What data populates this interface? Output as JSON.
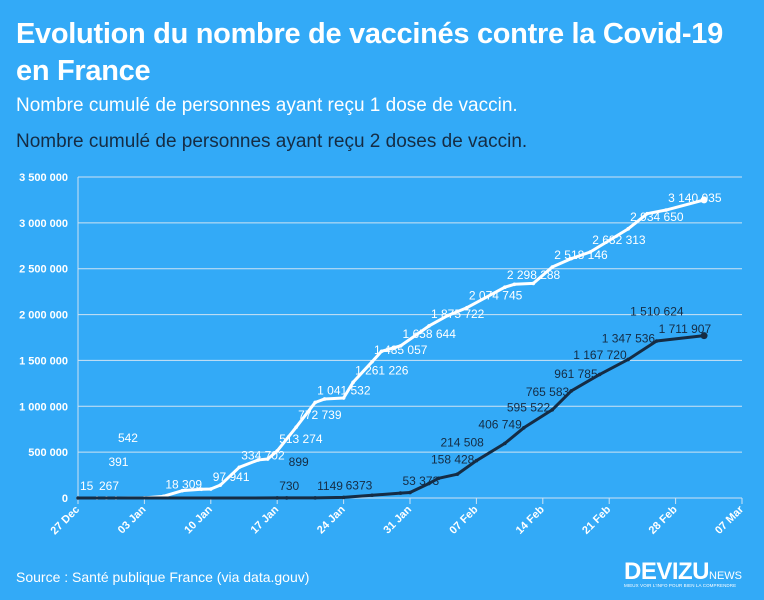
{
  "header": {
    "title": "Evolution du nombre de vaccinés contre la Covid-19 en France",
    "subtitle_dose1": "Nombre cumulé de personnes ayant reçu 1 dose de vaccin.",
    "subtitle_dose2": "Nombre cumulé de personnes ayant reçu 2 doses de vaccin."
  },
  "footer": {
    "source": "Source : Santé publique France (via data.gouv)",
    "logo_text": "DEVIZU",
    "logo_suffix": "NEWS",
    "logo_tagline": "MIEUX VOIR L'INFO POUR BIEN LA COMPRENDRE"
  },
  "colors": {
    "background": "#33aaf7",
    "dose1": "#ffffff",
    "dose2": "#152c44",
    "grid": "#cfe3f3"
  },
  "chart_data": {
    "type": "line",
    "xlim": [
      "2020-12-27",
      "2021-03-07"
    ],
    "ylim": [
      0,
      3500000
    ],
    "grid": true,
    "x_ticks": [
      {
        "date": "2020-12-27",
        "label": "27 Dec"
      },
      {
        "date": "2021-01-03",
        "label": "03 Jan"
      },
      {
        "date": "2021-01-10",
        "label": "10 Jan"
      },
      {
        "date": "2021-01-17",
        "label": "17 Jan"
      },
      {
        "date": "2021-01-24",
        "label": "24 Jan"
      },
      {
        "date": "2021-01-31",
        "label": "31 Jan"
      },
      {
        "date": "2021-02-07",
        "label": "07 Feb"
      },
      {
        "date": "2021-02-14",
        "label": "14 Feb"
      },
      {
        "date": "2021-02-21",
        "label": "21 Feb"
      },
      {
        "date": "2021-02-28",
        "label": "28 Feb"
      },
      {
        "date": "2021-03-07",
        "label": "07 Mar"
      }
    ],
    "y_ticks": [
      {
        "value": 0,
        "label": "0"
      },
      {
        "value": 500000,
        "label": "500 000"
      },
      {
        "value": 1000000,
        "label": "1 000 000"
      },
      {
        "value": 1500000,
        "label": "1 500 000"
      },
      {
        "value": 2000000,
        "label": "2 000 000"
      },
      {
        "value": 2500000,
        "label": "2 500 000"
      },
      {
        "value": 3000000,
        "label": "3 000 000"
      },
      {
        "value": 3500000,
        "label": "3 500 000"
      }
    ],
    "series": [
      {
        "name": "Nombre cumulé de personnes ayant reçu 1 dose de vaccin.",
        "points": [
          {
            "date": "2020-12-27",
            "value": 15,
            "label": "15"
          },
          {
            "date": "2020-12-29",
            "value": 267,
            "label": "267"
          },
          {
            "date": "2020-12-30",
            "value": 391,
            "label": "391"
          },
          {
            "date": "2020-12-31",
            "value": 542,
            "label": "542"
          },
          {
            "date": "2021-01-03",
            "value": 2000
          },
          {
            "date": "2021-01-05",
            "value": 18309,
            "label": "18 309"
          },
          {
            "date": "2021-01-07",
            "value": 80000
          },
          {
            "date": "2021-01-09",
            "value": 95000
          },
          {
            "date": "2021-01-10",
            "value": 97941,
            "label": "97 941"
          },
          {
            "date": "2021-01-11",
            "value": 140000
          },
          {
            "date": "2021-01-13",
            "value": 334702,
            "label": "334 702"
          },
          {
            "date": "2021-01-15",
            "value": 415000
          },
          {
            "date": "2021-01-16",
            "value": 425000
          },
          {
            "date": "2021-01-17",
            "value": 513274,
            "label": "513 274"
          },
          {
            "date": "2021-01-19",
            "value": 772739,
            "label": "772 739"
          },
          {
            "date": "2021-01-21",
            "value": 1041532,
            "label": "1 041 532"
          },
          {
            "date": "2021-01-22",
            "value": 1080000
          },
          {
            "date": "2021-01-24",
            "value": 1090000
          },
          {
            "date": "2021-01-25",
            "value": 1261226,
            "label": "1 261 226"
          },
          {
            "date": "2021-01-27",
            "value": 1485057,
            "label": "1 485 057"
          },
          {
            "date": "2021-01-28",
            "value": 1600000
          },
          {
            "date": "2021-01-30",
            "value": 1658644,
            "label": "1 658 644"
          },
          {
            "date": "2021-02-02",
            "value": 1875722,
            "label": "1 875 722"
          },
          {
            "date": "2021-02-04",
            "value": 1990000
          },
          {
            "date": "2021-02-06",
            "value": 2074745,
            "label": "2 074 745"
          },
          {
            "date": "2021-02-10",
            "value": 2298288,
            "label": "2 298 288"
          },
          {
            "date": "2021-02-11",
            "value": 2330000
          },
          {
            "date": "2021-02-13",
            "value": 2340000
          },
          {
            "date": "2021-02-15",
            "value": 2518146,
            "label": "2 518 146"
          },
          {
            "date": "2021-02-17",
            "value": 2610000
          },
          {
            "date": "2021-02-19",
            "value": 2682313,
            "label": "2 682 313"
          },
          {
            "date": "2021-02-23",
            "value": 2934650,
            "label": "2 934 650"
          },
          {
            "date": "2021-02-25",
            "value": 3100000
          },
          {
            "date": "2021-02-27",
            "value": 3140035,
            "label": "3 140 035"
          },
          {
            "date": "2021-03-03",
            "value": 3250000
          }
        ]
      },
      {
        "name": "Nombre cumulé de personnes ayant reçu 2 doses de vaccin.",
        "points": [
          {
            "date": "2020-12-27",
            "value": 0
          },
          {
            "date": "2021-01-17",
            "value": 730,
            "label": "730"
          },
          {
            "date": "2021-01-18",
            "value": 899,
            "label": "899"
          },
          {
            "date": "2021-01-21",
            "value": 1149,
            "label": "1149"
          },
          {
            "date": "2021-01-24",
            "value": 6373,
            "label": "6373"
          },
          {
            "date": "2021-01-27",
            "value": 30000
          },
          {
            "date": "2021-01-30",
            "value": 53373,
            "label": "53 373"
          },
          {
            "date": "2021-01-31",
            "value": 60000
          },
          {
            "date": "2021-02-02",
            "value": 158428,
            "label": "158 428"
          },
          {
            "date": "2021-02-03",
            "value": 214508,
            "label": "214 508"
          },
          {
            "date": "2021-02-05",
            "value": 260000
          },
          {
            "date": "2021-02-07",
            "value": 406749,
            "label": "406 749"
          },
          {
            "date": "2021-02-10",
            "value": 595522,
            "label": "595 522"
          },
          {
            "date": "2021-02-12",
            "value": 765583,
            "label": "765 583"
          },
          {
            "date": "2021-02-15",
            "value": 961785,
            "label": "961 785"
          },
          {
            "date": "2021-02-17",
            "value": 1167720,
            "label": "1 167 720"
          },
          {
            "date": "2021-02-20",
            "value": 1347536,
            "label": "1 347 536"
          },
          {
            "date": "2021-02-23",
            "value": 1510624,
            "label": "1 510 624"
          },
          {
            "date": "2021-02-26",
            "value": 1711907,
            "label": "1 711 907"
          },
          {
            "date": "2021-03-03",
            "value": 1770000
          }
        ]
      }
    ]
  }
}
